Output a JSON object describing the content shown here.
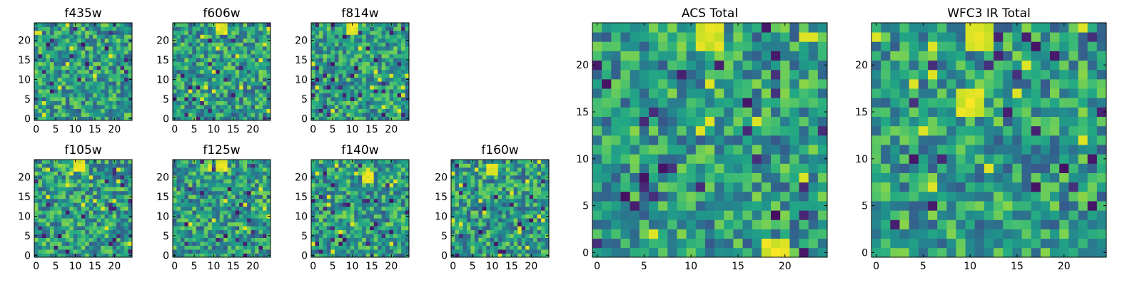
{
  "chart_data": [
    {
      "type": "heatmap",
      "title": "f435w",
      "xlim": [
        0,
        25
      ],
      "ylim": [
        0,
        25
      ],
      "xticks": [
        "0",
        "5",
        "10",
        "15",
        "20"
      ],
      "yticks": [
        "0",
        "5",
        "10",
        "15",
        "20"
      ],
      "colormap": "viridis",
      "seed": 435,
      "bright_spots": [],
      "dark_spots": []
    },
    {
      "type": "heatmap",
      "title": "f606w",
      "xlim": [
        0,
        25
      ],
      "ylim": [
        0,
        25
      ],
      "xticks": [
        "0",
        "5",
        "10",
        "15",
        "20"
      ],
      "yticks": [
        "0",
        "5",
        "10",
        "15",
        "20"
      ],
      "colormap": "viridis",
      "seed": 606,
      "bright_spots": [
        [
          12,
          23
        ]
      ],
      "dark_spots": []
    },
    {
      "type": "heatmap",
      "title": "f814w",
      "xlim": [
        0,
        25
      ],
      "ylim": [
        0,
        25
      ],
      "xticks": [
        "0",
        "5",
        "10",
        "15",
        "20"
      ],
      "yticks": [
        "0",
        "5",
        "10",
        "15",
        "20"
      ],
      "colormap": "viridis",
      "seed": 814,
      "bright_spots": [
        [
          10,
          23
        ]
      ],
      "dark_spots": []
    },
    {
      "type": "heatmap",
      "title": "f105w",
      "xlim": [
        0,
        25
      ],
      "ylim": [
        0,
        25
      ],
      "xticks": [
        "0",
        "5",
        "10",
        "15",
        "20"
      ],
      "yticks": [
        "0",
        "5",
        "10",
        "15",
        "20"
      ],
      "colormap": "viridis",
      "seed": 105,
      "bright_spots": [
        [
          11,
          23
        ]
      ],
      "dark_spots": [
        [
          6,
          5
        ]
      ]
    },
    {
      "type": "heatmap",
      "title": "f125w",
      "xlim": [
        0,
        25
      ],
      "ylim": [
        0,
        25
      ],
      "xticks": [
        "0",
        "5",
        "10",
        "15",
        "20"
      ],
      "yticks": [
        "0",
        "5",
        "10",
        "15",
        "20"
      ],
      "colormap": "viridis",
      "seed": 125,
      "bright_spots": [
        [
          12,
          23
        ]
      ],
      "dark_spots": [
        [
          13,
          5
        ]
      ]
    },
    {
      "type": "heatmap",
      "title": "f140w",
      "xlim": [
        0,
        25
      ],
      "ylim": [
        0,
        25
      ],
      "xticks": [
        "0",
        "5",
        "10",
        "15",
        "20"
      ],
      "yticks": [
        "0",
        "5",
        "10",
        "15",
        "20"
      ],
      "colormap": "viridis",
      "seed": 140,
      "bright_spots": [
        [
          14,
          20
        ]
      ],
      "dark_spots": [
        [
          20,
          14
        ],
        [
          8,
          4
        ]
      ]
    },
    {
      "type": "heatmap",
      "title": "f160w",
      "xlim": [
        0,
        25
      ],
      "ylim": [
        0,
        25
      ],
      "xticks": [
        "0",
        "5",
        "10",
        "15",
        "20"
      ],
      "yticks": [
        "0",
        "5",
        "10",
        "15",
        "20"
      ],
      "colormap": "viridis",
      "seed": 160,
      "bright_spots": [
        [
          10,
          22
        ]
      ],
      "dark_spots": [
        [
          20,
          9
        ],
        [
          11,
          3
        ]
      ]
    },
    {
      "type": "heatmap",
      "title": "ACS Total",
      "xlim": [
        0,
        25
      ],
      "ylim": [
        0,
        25
      ],
      "xticks": [
        "0",
        "5",
        "10",
        "15",
        "20"
      ],
      "yticks": [
        "0",
        "5",
        "10",
        "15",
        "20"
      ],
      "colormap": "viridis",
      "seed": 777,
      "bright_spots": [
        [
          12,
          23
        ],
        [
          19,
          0
        ]
      ],
      "dark_spots": [
        [
          19,
          4
        ],
        [
          7,
          9
        ],
        [
          3,
          6
        ]
      ]
    },
    {
      "type": "heatmap",
      "title": "WFC3 IR Total",
      "xlim": [
        0,
        25
      ],
      "ylim": [
        0,
        25
      ],
      "xticks": [
        "0",
        "5",
        "10",
        "15",
        "20"
      ],
      "yticks": [
        "0",
        "5",
        "10",
        "15",
        "20"
      ],
      "colormap": "viridis",
      "seed": 999,
      "bright_spots": [
        [
          11,
          23
        ],
        [
          10,
          16
        ]
      ],
      "dark_spots": [
        [
          6,
          5
        ],
        [
          20,
          9
        ],
        [
          19,
          21
        ]
      ]
    }
  ]
}
